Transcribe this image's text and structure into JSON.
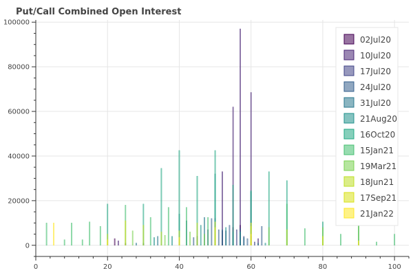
{
  "chart_data": {
    "type": "bar",
    "title": "Put/Call Combined Open Interest",
    "xlabel": "",
    "ylabel": "",
    "xlim": [
      0,
      104
    ],
    "ylim": [
      -5000,
      101000
    ],
    "x_ticks": [
      0,
      20,
      40,
      60,
      80,
      100
    ],
    "y_ticks": [
      0,
      20000,
      40000,
      60000,
      80000,
      100000
    ],
    "grid": true,
    "legend_placement": "top-right",
    "series": [
      {
        "name": "02Jul20",
        "color": "#440154",
        "points": [
          [
            22,
            3000
          ],
          [
            50,
            5000
          ],
          [
            52,
            6500
          ],
          [
            55,
            8000
          ],
          [
            57,
            9000
          ],
          [
            60,
            4000
          ]
        ]
      },
      {
        "name": "10Jul20",
        "color": "#482475",
        "points": [
          [
            23,
            2000
          ],
          [
            45,
            4000
          ],
          [
            50,
            12000
          ],
          [
            52,
            33000
          ],
          [
            55,
            62000
          ],
          [
            57,
            97000
          ],
          [
            60,
            68500
          ],
          [
            62,
            3000
          ]
        ]
      },
      {
        "name": "17Jul20",
        "color": "#414487",
        "points": [
          [
            25,
            1000
          ],
          [
            40,
            3000
          ],
          [
            48,
            7000
          ],
          [
            50,
            10000
          ],
          [
            53,
            6500
          ],
          [
            56,
            7000
          ],
          [
            58,
            4000
          ],
          [
            61,
            1500
          ]
        ]
      },
      {
        "name": "24Jul20",
        "color": "#355f8d",
        "points": [
          [
            30,
            1000
          ],
          [
            44,
            3500
          ],
          [
            49,
            12000
          ],
          [
            51,
            7000
          ],
          [
            54,
            9000
          ],
          [
            57,
            7500
          ],
          [
            59,
            3000
          ],
          [
            63,
            8500
          ]
        ]
      },
      {
        "name": "31Jul20",
        "color": "#2a788e",
        "points": [
          [
            28,
            1000
          ],
          [
            34,
            4000
          ],
          [
            42,
            11000
          ],
          [
            47,
            12500
          ],
          [
            52,
            7000
          ],
          [
            55,
            6000
          ],
          [
            58,
            3500
          ],
          [
            62,
            1000
          ]
        ]
      },
      {
        "name": "21Aug20",
        "color": "#21918c",
        "points": [
          [
            33,
            3500
          ],
          [
            38,
            4000
          ],
          [
            40,
            14000
          ],
          [
            46,
            9000
          ],
          [
            50,
            32000
          ],
          [
            53,
            8000
          ],
          [
            57,
            6000
          ],
          [
            60,
            24000
          ],
          [
            64,
            1000
          ]
        ]
      },
      {
        "name": "16Oct20",
        "color": "#22a884",
        "points": [
          [
            20,
            18500
          ],
          [
            30,
            18500
          ],
          [
            35,
            34500
          ],
          [
            40,
            42500
          ],
          [
            45,
            31000
          ],
          [
            50,
            42500
          ],
          [
            55,
            27000
          ],
          [
            60,
            24500
          ],
          [
            65,
            33000
          ],
          [
            70,
            29000
          ],
          [
            80,
            10500
          ],
          [
            90,
            9500
          ]
        ]
      },
      {
        "name": "15Jan21",
        "color": "#44bf70",
        "points": [
          [
            3,
            10000
          ],
          [
            8,
            2500
          ],
          [
            10,
            10000
          ],
          [
            13,
            2500
          ],
          [
            15,
            10500
          ],
          [
            18,
            8500
          ],
          [
            25,
            18000
          ],
          [
            32,
            12500
          ],
          [
            37,
            17000
          ],
          [
            42,
            17000
          ],
          [
            48,
            12500
          ],
          [
            70,
            18500
          ],
          [
            75,
            7500
          ],
          [
            85,
            5000
          ],
          [
            95,
            1500
          ],
          [
            100,
            5000
          ]
        ]
      },
      {
        "name": "19Mar21",
        "color": "#7ad151",
        "points": [
          [
            27,
            6500
          ],
          [
            36,
            4500
          ],
          [
            43,
            6000
          ],
          [
            47,
            5000
          ],
          [
            65,
            8000
          ],
          [
            80,
            8000
          ],
          [
            90,
            9000
          ]
        ]
      },
      {
        "name": "18Jun21",
        "color": "#bddf26",
        "points": [
          [
            20,
            5000
          ],
          [
            30,
            9000
          ],
          [
            35,
            6000
          ],
          [
            40,
            6500
          ],
          [
            45,
            10000
          ],
          [
            50,
            10500
          ],
          [
            60,
            8500
          ],
          [
            70,
            7000
          ]
        ]
      },
      {
        "name": "17Sep21",
        "color": "#d8e219",
        "points": [
          [
            25,
            11000
          ],
          [
            50,
            8000
          ],
          [
            60,
            10000
          ],
          [
            80,
            4000
          ]
        ]
      },
      {
        "name": "21Jan22",
        "color": "#fde725",
        "points": [
          [
            5,
            10000
          ],
          [
            20,
            2500
          ],
          [
            40,
            3500
          ],
          [
            60,
            5000
          ],
          [
            90,
            2000
          ]
        ]
      }
    ]
  }
}
